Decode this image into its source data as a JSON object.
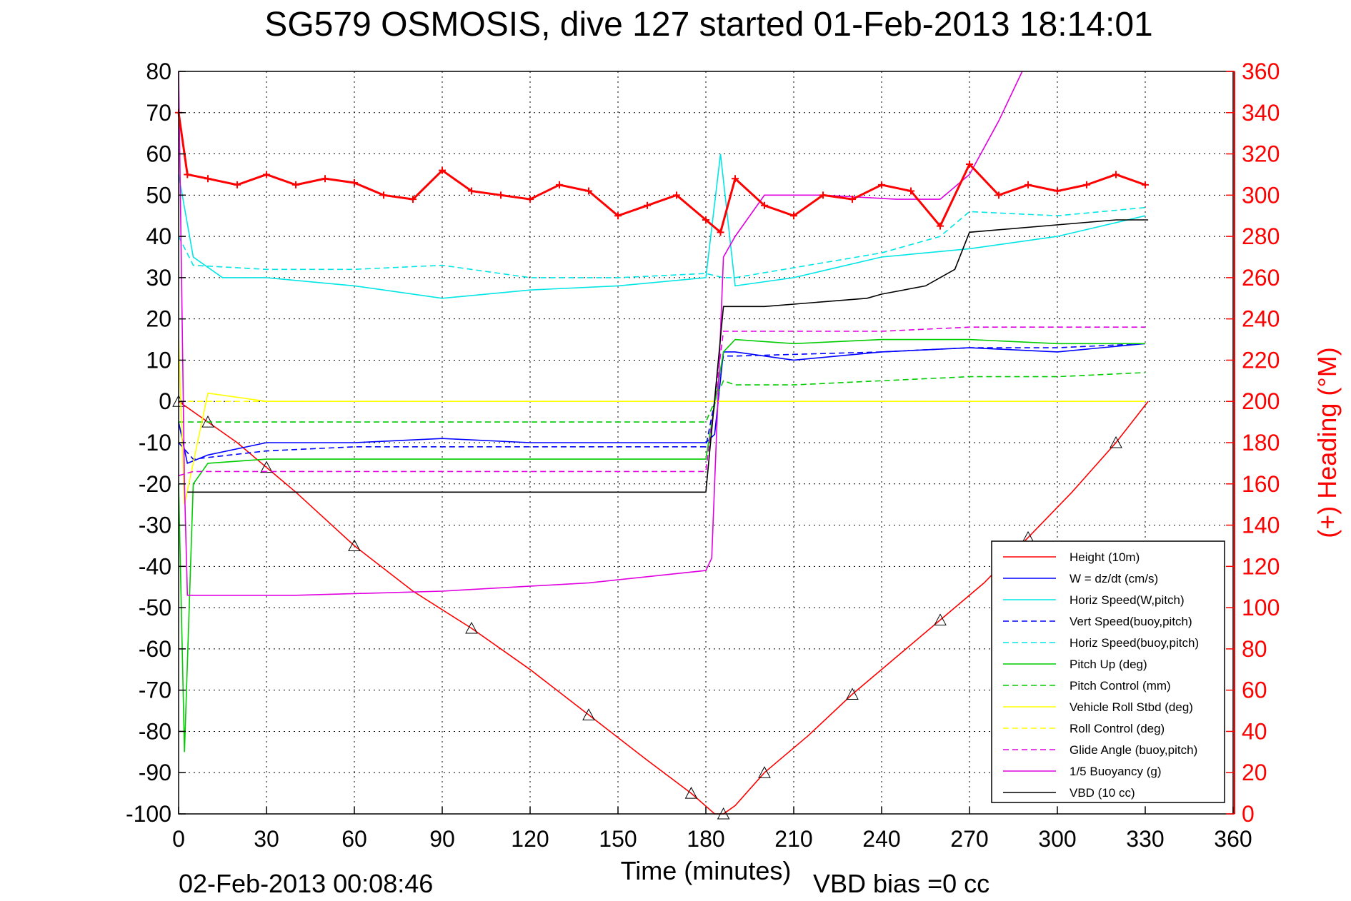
{
  "chart_data": {
    "type": "line",
    "title": "SG579 OSMOSIS, dive 127 started 01-Feb-2013 18:14:01",
    "xlabel": "Time (minutes)",
    "ylabel": "",
    "ylabel_right": "(+) Heading (°M)",
    "timestamp": "02-Feb-2013 00:08:46",
    "vbd_bias": "VBD bias =0 cc",
    "xlim": [
      0,
      360
    ],
    "ylim": [
      -100,
      80
    ],
    "ylim_right": [
      0,
      360
    ],
    "xticks": [
      "0",
      "30",
      "60",
      "90",
      "120",
      "150",
      "180",
      "210",
      "240",
      "270",
      "300",
      "330",
      "360"
    ],
    "yticks": [
      "80",
      "70",
      "60",
      "50",
      "40",
      "30",
      "20",
      "10",
      "0",
      "-10",
      "-20",
      "-30",
      "-40",
      "-50",
      "-60",
      "-70",
      "-80",
      "-90",
      "-100"
    ],
    "yticks_right": [
      "360",
      "340",
      "320",
      "300",
      "280",
      "260",
      "240",
      "220",
      "200",
      "180",
      "160",
      "140",
      "120",
      "100",
      "80",
      "60",
      "40",
      "20",
      "0"
    ],
    "grid": true,
    "legend_position": "bottom-right",
    "series": [
      {
        "name": "Height (10m)",
        "color": "#ff0000",
        "style": "solid",
        "x": [
          0,
          10,
          20,
          30,
          40,
          60,
          80,
          100,
          120,
          140,
          160,
          175,
          183,
          186,
          190,
          200,
          215,
          230,
          245,
          260,
          275,
          290,
          305,
          320,
          331
        ],
        "y": [
          0,
          -5,
          -10,
          -16,
          -22,
          -35,
          -46,
          -55,
          -65,
          -76,
          -87,
          -95,
          -100,
          -100,
          -98,
          -90,
          -81,
          -71,
          -62,
          -53,
          -44,
          -33,
          -22,
          -10,
          0
        ]
      },
      {
        "name": "W = dz/dt (cm/s)",
        "color": "#0000ff",
        "style": "solid",
        "x": [
          0,
          3,
          10,
          30,
          60,
          90,
          120,
          150,
          180,
          183,
          186,
          190,
          210,
          240,
          270,
          300,
          330
        ],
        "y": [
          -5,
          -15,
          -13,
          -10,
          -10,
          -9,
          -10,
          -10,
          -10,
          -8,
          12,
          12,
          10,
          12,
          13,
          12,
          14
        ]
      },
      {
        "name": "Horiz Speed(W,pitch)",
        "color": "#00e5e5",
        "style": "solid",
        "x": [
          0,
          5,
          15,
          30,
          60,
          90,
          120,
          150,
          180,
          185,
          190,
          210,
          240,
          270,
          300,
          330
        ],
        "y": [
          55,
          35,
          30,
          30,
          28,
          25,
          27,
          28,
          30,
          60,
          28,
          30,
          35,
          37,
          40,
          45
        ]
      },
      {
        "name": "Vert Speed(buoy,pitch)",
        "color": "#0000ff",
        "style": "dashed",
        "x": [
          0,
          5,
          30,
          60,
          90,
          120,
          150,
          180,
          186,
          190,
          240,
          270,
          300,
          330
        ],
        "y": [
          -10,
          -14,
          -12,
          -11,
          -11,
          -11,
          -11,
          -11,
          11,
          11,
          12,
          13,
          13,
          14
        ]
      },
      {
        "name": "Horiz Speed(buoy,pitch)",
        "color": "#00e5e5",
        "style": "dashed",
        "x": [
          0,
          5,
          30,
          60,
          90,
          120,
          150,
          180,
          186,
          190,
          240,
          260,
          270,
          300,
          330
        ],
        "y": [
          40,
          33,
          32,
          32,
          33,
          30,
          30,
          31,
          30,
          30,
          36,
          40,
          46,
          45,
          47
        ]
      },
      {
        "name": "Pitch Up (deg)",
        "color": "#00cc00",
        "style": "solid",
        "x": [
          0,
          2,
          5,
          10,
          30,
          60,
          90,
          120,
          150,
          180,
          186,
          190,
          210,
          240,
          270,
          300,
          330
        ],
        "y": [
          -20,
          -85,
          -20,
          -15,
          -14,
          -14,
          -14,
          -14,
          -14,
          -14,
          12,
          15,
          14,
          15,
          15,
          14,
          14
        ]
      },
      {
        "name": "Pitch Control (mm)",
        "color": "#00cc00",
        "style": "dashed",
        "x": [
          0,
          5,
          30,
          60,
          90,
          120,
          150,
          180,
          186,
          190,
          210,
          240,
          270,
          300,
          330
        ],
        "y": [
          -5,
          -5,
          -5,
          -5,
          -5,
          -5,
          -5,
          -5,
          5,
          4,
          4,
          5,
          6,
          6,
          7
        ]
      },
      {
        "name": "Vehicle Roll Stbd (deg)",
        "color": "#ffff00",
        "style": "solid",
        "x": [
          0,
          2,
          10,
          30,
          60,
          90,
          120,
          150,
          180,
          186,
          210,
          240,
          270,
          300,
          330
        ],
        "y": [
          15,
          -25,
          2,
          0,
          0,
          0,
          0,
          0,
          0,
          0,
          0,
          0,
          0,
          0,
          0
        ]
      },
      {
        "name": "Roll Control (deg)",
        "color": "#ffff00",
        "style": "dashed",
        "x": [
          0,
          30,
          60,
          90,
          120,
          150,
          180,
          210,
          240,
          270,
          300,
          330
        ],
        "y": [
          0,
          0,
          0,
          0,
          0,
          0,
          0,
          0,
          0,
          0,
          0,
          0
        ]
      },
      {
        "name": "Glide Angle (buoy,pitch)",
        "color": "#e000e0",
        "style": "dashed",
        "x": [
          0,
          5,
          30,
          60,
          90,
          120,
          150,
          180,
          186,
          190,
          210,
          240,
          270,
          300,
          330
        ],
        "y": [
          -18,
          -17,
          -17,
          -17,
          -17,
          -17,
          -17,
          -17,
          17,
          17,
          17,
          17,
          18,
          18,
          18
        ]
      },
      {
        "name": "1/5 Buoyancy (g)",
        "color": "#e000e0",
        "style": "solid",
        "x": [
          0,
          2,
          3,
          40,
          90,
          140,
          180,
          182,
          186,
          190,
          200,
          220,
          245,
          260,
          270,
          280,
          288
        ],
        "y": [
          80,
          -20,
          -47,
          -47,
          -46,
          -44,
          -41,
          -38,
          35,
          40,
          50,
          50,
          49,
          49,
          55,
          68,
          80
        ]
      },
      {
        "name": "VBD (10 cc)",
        "color": "#000000",
        "style": "solid",
        "x": [
          3,
          180,
          186,
          200,
          235,
          240,
          255,
          265,
          270,
          320,
          331
        ],
        "y": [
          -22,
          -22,
          23,
          23,
          25,
          26,
          28,
          32,
          41,
          44,
          44
        ]
      },
      {
        "name": "Heading (°M)",
        "axis": "right",
        "color": "#ff0000",
        "style": "markers",
        "x": [
          0,
          3,
          10,
          20,
          30,
          40,
          50,
          60,
          70,
          80,
          90,
          100,
          110,
          120,
          130,
          140,
          150,
          160,
          170,
          180,
          185,
          190,
          200,
          210,
          220,
          230,
          240,
          250,
          260,
          270,
          280,
          290,
          300,
          310,
          320,
          330
        ],
        "y": [
          340,
          310,
          308,
          305,
          310,
          305,
          308,
          306,
          300,
          298,
          312,
          302,
          300,
          298,
          305,
          302,
          290,
          295,
          300,
          288,
          282,
          308,
          295,
          290,
          300,
          298,
          305,
          302,
          285,
          315,
          300,
          305,
          302,
          305,
          310,
          305
        ]
      }
    ]
  }
}
